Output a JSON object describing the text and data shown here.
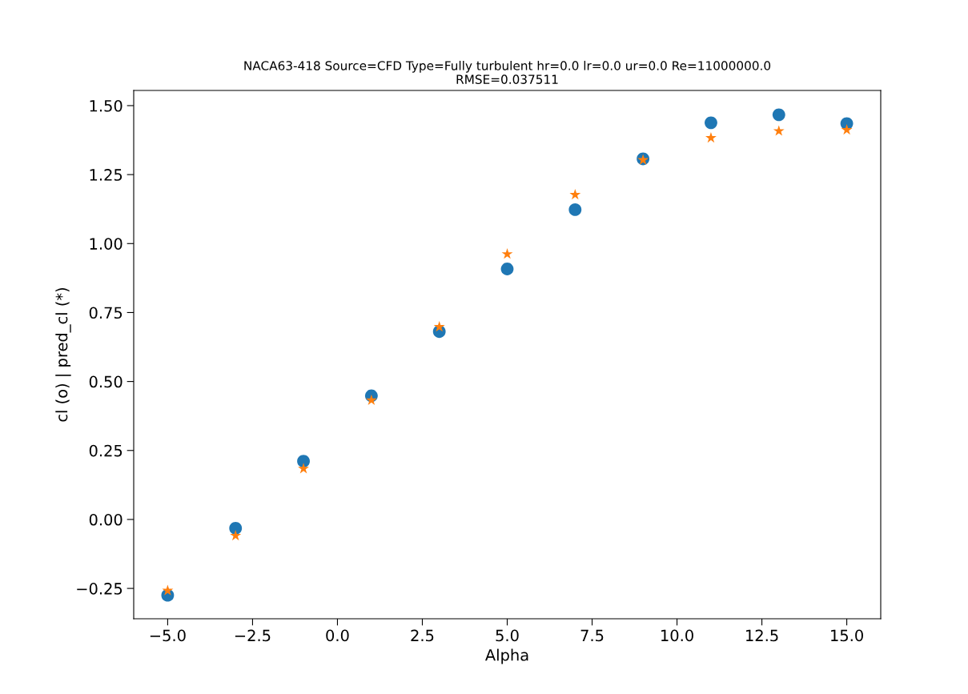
{
  "chart_data": {
    "type": "scatter",
    "title": "NACA63-418 Source=CFD Type=Fully turbulent hr=0.0 lr=0.0 ur=0.0 Re=11000000.0\nRMSE=0.037511",
    "xlabel": "Alpha",
    "ylabel": "cl (o) | pred_cl (*)",
    "x": [
      -5,
      -3,
      -1,
      1,
      3,
      5,
      7,
      9,
      11,
      13,
      15
    ],
    "series": [
      {
        "color": "#1f77b4",
        "marker": "circle",
        "values": [
          -0.275,
          -0.032,
          0.211,
          0.448,
          0.681,
          0.908,
          1.123,
          1.307,
          1.438,
          1.467,
          1.435
        ]
      },
      {
        "color": "#ff7f0e",
        "marker": "star",
        "values": [
          -0.258,
          -0.059,
          0.184,
          0.432,
          0.698,
          0.962,
          1.177,
          1.303,
          1.383,
          1.408,
          1.412
        ]
      }
    ],
    "xlim": [
      -6,
      16
    ],
    "xticks": [
      {
        "value": -5,
        "label": "−5.0"
      },
      {
        "value": -2.5,
        "label": "−2.5"
      },
      {
        "value": 0,
        "label": "0.0"
      },
      {
        "value": 2.5,
        "label": "2.5"
      },
      {
        "value": 5,
        "label": "5.0"
      },
      {
        "value": 7.5,
        "label": "7.5"
      },
      {
        "value": 10,
        "label": "10.0"
      },
      {
        "value": 12.5,
        "label": "12.5"
      },
      {
        "value": 15,
        "label": "15.0"
      }
    ],
    "ylim": [
      -0.36,
      1.555
    ],
    "yticks": [
      {
        "value": -0.25,
        "label": "−0.25"
      },
      {
        "value": 0,
        "label": "0.00"
      },
      {
        "value": 0.25,
        "label": "0.25"
      },
      {
        "value": 0.5,
        "label": "0.50"
      },
      {
        "value": 0.75,
        "label": "0.75"
      },
      {
        "value": 1,
        "label": "1.00"
      },
      {
        "value": 1.25,
        "label": "1.25"
      },
      {
        "value": 1.5,
        "label": "1.50"
      }
    ],
    "grid": false
  }
}
